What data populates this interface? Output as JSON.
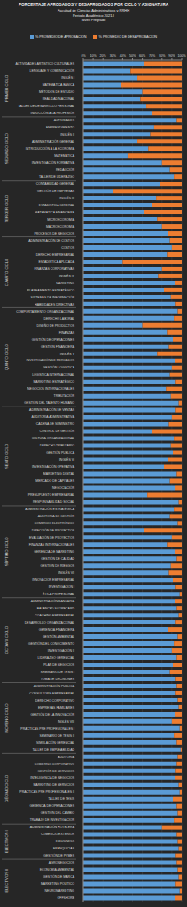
{
  "chart_data": {
    "type": "bar",
    "orientation": "horizontal",
    "stacked": true,
    "grid": true,
    "legend": "top",
    "title": "PORCENTAJE APROBADOS Y DESAPROBADOS POR CICLO Y ASIGNATURA",
    "subtitle": [
      "Facultad de Ciencias Administrativas y RRHH",
      "Periodo Académico 2021-I",
      "Nivel: Pregrado"
    ],
    "xlim": [
      0,
      100
    ],
    "xticks": [
      {
        "value": 0,
        "label": "0%"
      },
      {
        "value": 10,
        "label": "10%"
      },
      {
        "value": 20,
        "label": "20%"
      },
      {
        "value": 30,
        "label": "30%"
      },
      {
        "value": 40,
        "label": "40%"
      },
      {
        "value": 50,
        "label": "50%"
      },
      {
        "value": 60,
        "label": "60%"
      },
      {
        "value": 70,
        "label": "70%"
      },
      {
        "value": 80,
        "label": "80%"
      },
      {
        "value": 90,
        "label": "90%"
      },
      {
        "value": 100,
        "label": "100%"
      }
    ],
    "groups": [
      {
        "name": "PRIMER CICLO",
        "count": 8
      },
      {
        "name": "SEGUNDO CICLO",
        "count": 9
      },
      {
        "name": "TERCER CICLO",
        "count": 8
      },
      {
        "name": "CUARTO CICLO",
        "count": 10
      },
      {
        "name": "QUINTO CICLO",
        "count": 14
      },
      {
        "name": "SEXTO CICLO",
        "count": 14
      },
      {
        "name": "SÉPTIMO CICLO",
        "count": 13
      },
      {
        "name": "OCTAVO CICLO",
        "count": 12
      },
      {
        "name": "NOVENO CICLO",
        "count": 10
      },
      {
        "name": "DÉCIMO CICLO",
        "count": 10
      },
      {
        "name": "ELECTIVOS I",
        "count": 5
      },
      {
        "name": "ELECTIVOS II",
        "count": 6
      }
    ],
    "categories": [
      "ACTIVIDADES ARTÍSTICO CULTURALES",
      "LENGUAJE Y COMUNICACIÓN",
      "INGLÉS I",
      "MATEMÁTICA BÁSICA",
      "MÉTODOS DE ESTUDIO",
      "REALIDAD NACIONAL",
      "TALLER DE DESARROLLO PERSONAL",
      "INDUCCIÓN A LA PROFESIÓN",
      "ACTIVIDADES",
      "EMPRENDIMIENTO",
      "INGLÉS II",
      "ADMINISTRACIÓN GENERAL",
      "INTRODUCCIÓN A LA ECONOMÍA",
      "MATEMÁTICA",
      "INVESTIGACIÓN FORMATIVA",
      "REDACCIÓN",
      "TALLER DE LIDERAZGO",
      "CONTABILIDAD GENERAL",
      "GESTIÓN DE EMPRESAS",
      "INGLÉS III",
      "ESTADÍSTICA GENERAL",
      "MATEMÁTICA FINANCIERA",
      "MICROECONOMÍA",
      "MACROECONOMÍA",
      "PROCESOS DE NEGOCIOS",
      "ADMINISTRACIÓN DE COSTOS",
      "COSTOS",
      "DERECHO EMPRESARIAL",
      "ESTADÍSTICA APLICADA",
      "FINANZAS CORPORATIVAS",
      "INGLÉS IV",
      "MARKETING",
      "PLANEAMIENTO ESTRATÉGICO",
      "SISTEMAS DE INFORMACIÓN",
      "HABILIDADES DIRECTIVAS",
      "COMPORTAMIENTO ORGANIZACIONAL",
      "DERECHO LABORAL",
      "DISEÑO DE PRODUCTOS",
      "FINANZAS",
      "GESTIÓN DE OPERACIONES",
      "GESTIÓN FINANCIERA",
      "INGLÉS V",
      "INVESTIGACIÓN DE MERCADOS",
      "GESTIÓN LOGÍSTICA",
      "LOGÍSTICA INTERNACIONAL",
      "MARKETING ESTRATÉGICO",
      "NEGOCIOS INTERNACIONALES",
      "TRIBUTACIÓN",
      "GESTIÓN DEL TALENTO HUMANO",
      "ADMINISTRACIÓN DE VENTAS",
      "AUDITORÍA ADMINISTRATIVA",
      "CADENA DE SUMINISTRO",
      "CONTROL DE GESTIÓN",
      "CULTURA ORGANIZACIONAL",
      "DERECHO TRIBUTARIO",
      "GESTIÓN PÚBLICA",
      "INGLÉS VI",
      "INVESTIGACIÓN OPERATIVA",
      "MARKETING DIGITAL",
      "MERCADO DE CAPITALES",
      "NEGOCIACIÓN",
      "PRESUPUESTO EMPRESARIAL",
      "RESPONSABILIDAD SOCIAL",
      "ADMINISTRACIÓN ESTRATÉGICA",
      "AUDITORÍA DE GESTIÓN",
      "COMERCIO ELECTRÓNICO",
      "DIRECCIÓN DE PROYECTOS",
      "EVALUACIÓN DE PROYECTOS",
      "FINANZAS INTERNACIONALES",
      "GERENCIA DE MARKETING",
      "GESTIÓN DE CALIDAD",
      "GESTIÓN DE RIESGOS",
      "INGLÉS VII",
      "INNOVACIÓN EMPRESARIAL",
      "INVESTIGACIÓN I",
      "ÉTICA PROFESIONAL",
      "ADMINISTRACIÓN BANCARIA",
      "BALANCED SCORECARD",
      "COACHING EMPRESARIAL",
      "DESARROLLO ORGANIZACIONAL",
      "GERENCIA FINANCIERA",
      "GESTIÓN AMBIENTAL",
      "GESTIÓN DEL CONOCIMIENTO",
      "INVESTIGACIÓN II",
      "LIDERAZGO GERENCIAL",
      "PLAN DE NEGOCIOS",
      "SEMINARIO DE TESIS I",
      "TOMA DE DECISIONES",
      "ADMINISTRACIÓN PÚBLICA",
      "CONSULTORÍA EMPRESARIAL",
      "DERECHO CORPORATIVO",
      "EMPRESAS FAMILIARES",
      "GESTIÓN DE LA INNOVACIÓN",
      "INGLÉS VIII",
      "PRÁCTICAS PRE PROFESIONALES I",
      "SEMINARIO DE TESIS II",
      "SIMULACIÓN GERENCIAL",
      "TALLER DE EMPLEABILIDAD",
      "AUDITORÍA",
      "GOBIERNO CORPORATIVO",
      "GESTIÓN DE SERVICIOS",
      "INTELIGENCIA DE NEGOCIOS",
      "MARKETING DE SERVICIOS",
      "PRÁCTICAS PRE PROFESIONALES II",
      "TALLER DE TESIS",
      "GERENCIA DE OPERACIONES",
      "GESTIÓN DEL CAMBIO",
      "TRABAJO DE INVESTIGACIÓN",
      "ADMINISTRACIÓN HOTELERA",
      "COMERCIO EXTERIOR",
      "E-BUSINESS",
      "FRANQUICIAS",
      "GESTIÓN DE PYMES",
      "AGRONEGOCIOS",
      "ECONOMÍA AMBIENTAL",
      "GESTIÓN DE MARCA",
      "MARKETING POLÍTICO",
      "NEUROMARKETING",
      "OFFSHORE"
    ],
    "series": [
      {
        "name": "% PROMEDIO DE APROBACIÓN",
        "color": "#5b9bd5",
        "values": [
          62,
          48,
          55,
          38,
          60,
          58,
          64,
          70,
          95,
          72,
          68,
          55,
          66,
          45,
          80,
          88,
          92,
          78,
          30,
          74,
          70,
          62,
          75,
          80,
          86,
          88,
          90,
          85,
          40,
          80,
          76,
          93,
          82,
          89,
          94,
          96,
          92,
          60,
          85,
          91,
          87,
          75,
          93,
          90,
          88,
          94,
          84,
          89,
          97,
          94,
          90,
          87,
          70,
          92,
          89,
          91,
          86,
          82,
          95,
          88,
          93,
          65,
          97,
          92,
          88,
          96,
          62,
          90,
          85,
          93,
          95,
          89,
          87,
          91,
          94,
          98,
          93,
          95,
          97,
          94,
          86,
          96,
          92,
          90,
          95,
          91,
          88,
          94,
          95,
          94,
          96,
          97,
          93,
          90,
          98,
          92,
          95,
          99,
          96,
          95,
          94,
          93,
          97,
          98,
          91,
          95,
          96,
          92,
          80,
          95,
          96,
          97,
          94,
          95,
          96,
          97,
          94,
          98,
          93
        ]
      },
      {
        "name": "% PROMEDIO DE DESAPROBACIÓN",
        "color": "#ed7d31",
        "values": [
          38,
          52,
          45,
          62,
          40,
          42,
          36,
          30,
          5,
          28,
          32,
          45,
          34,
          55,
          20,
          12,
          8,
          22,
          70,
          26,
          30,
          38,
          25,
          20,
          14,
          12,
          10,
          15,
          60,
          20,
          24,
          7,
          18,
          11,
          6,
          4,
          8,
          40,
          15,
          9,
          13,
          25,
          7,
          10,
          12,
          6,
          16,
          11,
          3,
          6,
          10,
          13,
          30,
          8,
          11,
          9,
          14,
          18,
          5,
          12,
          7,
          35,
          3,
          8,
          12,
          4,
          38,
          10,
          15,
          7,
          5,
          11,
          13,
          9,
          6,
          2,
          7,
          5,
          3,
          6,
          14,
          4,
          8,
          10,
          5,
          9,
          12,
          6,
          5,
          6,
          4,
          3,
          7,
          10,
          2,
          8,
          5,
          1,
          4,
          5,
          6,
          7,
          3,
          2,
          9,
          5,
          4,
          8,
          20,
          5,
          4,
          3,
          6,
          5,
          4,
          3,
          6,
          2,
          7
        ]
      }
    ]
  }
}
